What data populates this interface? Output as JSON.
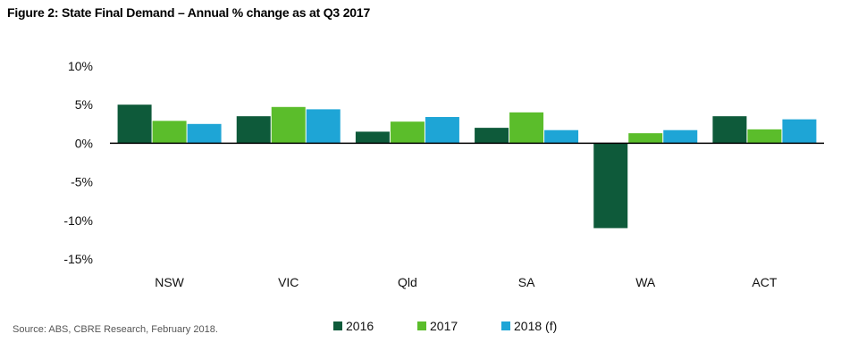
{
  "figure": {
    "title": "Figure 2:  State Final Demand – Annual % change as at Q3 2017",
    "source": "Source: ABS, CBRE Research, February 2018."
  },
  "chart_data": {
    "type": "bar",
    "title": "Figure 2:  State Final Demand – Annual % change as at Q3 2017",
    "categories": [
      "NSW",
      "VIC",
      "Qld",
      "SA",
      "WA",
      "ACT"
    ],
    "series": [
      {
        "name": "2016",
        "color": "#0e5a3a",
        "values": [
          5.0,
          3.5,
          1.5,
          2.0,
          -11.0,
          3.5
        ]
      },
      {
        "name": "2017",
        "color": "#5bbd2b",
        "values": [
          2.9,
          4.7,
          2.8,
          4.0,
          1.3,
          1.8
        ]
      },
      {
        "name": "2018 (f)",
        "color": "#1ea5d6",
        "values": [
          2.5,
          4.4,
          3.4,
          1.7,
          1.7,
          3.1
        ]
      }
    ],
    "yticks": [
      10,
      5,
      0,
      -5,
      -10,
      -15
    ],
    "ytick_labels": [
      "10%",
      "5%",
      "0%",
      "-5%",
      "-10%",
      "-15%"
    ],
    "ylim": [
      -15,
      10
    ],
    "grid": false,
    "legend_position": "bottom-center",
    "xlabel": "",
    "ylabel": ""
  }
}
